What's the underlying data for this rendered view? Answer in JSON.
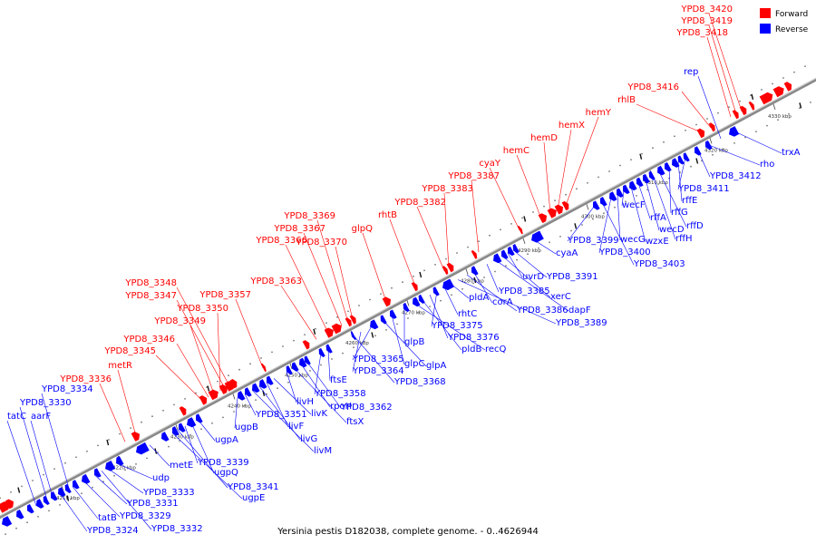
{
  "caption": "Yersinia pestis D182038, complete genome. - 0..4626944",
  "legend": [
    {
      "label": "Forward",
      "color": "#ff0000"
    },
    {
      "label": "Reverse",
      "color": "#0000ff"
    }
  ],
  "colors": {
    "forward": "#ff0000",
    "reverse": "#0000ff",
    "backbone": "#888888",
    "dots": "#777777"
  },
  "ticks": [
    "4210 kbp",
    "4220 kbp",
    "4230 kbp",
    "4240 kbp",
    "4250 kbp",
    "4260 kbp",
    "4270 kbp",
    "4280 kbp",
    "4290 kbp",
    "4300 kbp",
    "4310 kbp",
    "4320 kbp",
    "4330 kbp"
  ],
  "forward_labels": [
    "YPD8_3420",
    "YPD8_3419",
    "YPD8_3418",
    "YPD8_3416",
    "rhlB",
    "hemY",
    "hemX",
    "hemD",
    "hemC",
    "cyaY",
    "YPD8_3387",
    "YPD8_3383",
    "YPD8_3382",
    "rhtB",
    "glpQ",
    "YPD8_3369",
    "YPD8_3367",
    "YPD8_3366",
    "YPD8_3370",
    "YPD8_3363",
    "YPD8_3357",
    "YPD8_3348",
    "YPD8_3347",
    "YPD8_3350",
    "YPD8_3349",
    "YPD8_3346",
    "YPD8_3345",
    "metR",
    "YPD8_3336"
  ],
  "reverse_labels": [
    "rep",
    "trxA",
    "rho",
    "YPD8_3412",
    "YPD8_3411",
    "rffE",
    "rffG",
    "rffD",
    "rffH",
    "wecD",
    "rffA",
    "wzxE",
    "wecF",
    "wecG",
    "YPD8_3400",
    "YPD8_3403",
    "YPD8_3399",
    "cyaA",
    "YPD8_3391",
    "uvrD",
    "xerC",
    "dapF",
    "YPD8_3385",
    "corA",
    "YPD8_3386",
    "YPD8_3389",
    "pldA",
    "rhtC",
    "YPD8_3375",
    "YPD8_3376",
    "pldB",
    "recQ",
    "glpB",
    "glpC",
    "glpA",
    "YPD8_3365",
    "YPD8_3364",
    "YPD8_3368",
    "ftsE",
    "YPD8_3358",
    "YPD8_3362",
    "rpoH",
    "ftsX",
    "livH",
    "livK",
    "livF",
    "livG",
    "livM",
    "YPD8_3351",
    "ugpB",
    "ugpA",
    "ugpQ",
    "YPD8_3339",
    "YPD8_3341",
    "ugpE",
    "metE",
    "udp",
    "YPD8_3333",
    "YPD8_3331",
    "YPD8_3329",
    "tatB",
    "YPD8_3324",
    "YPD8_3332",
    "YPD8_3334",
    "YPD8_3330",
    "tatC",
    "aarF"
  ]
}
